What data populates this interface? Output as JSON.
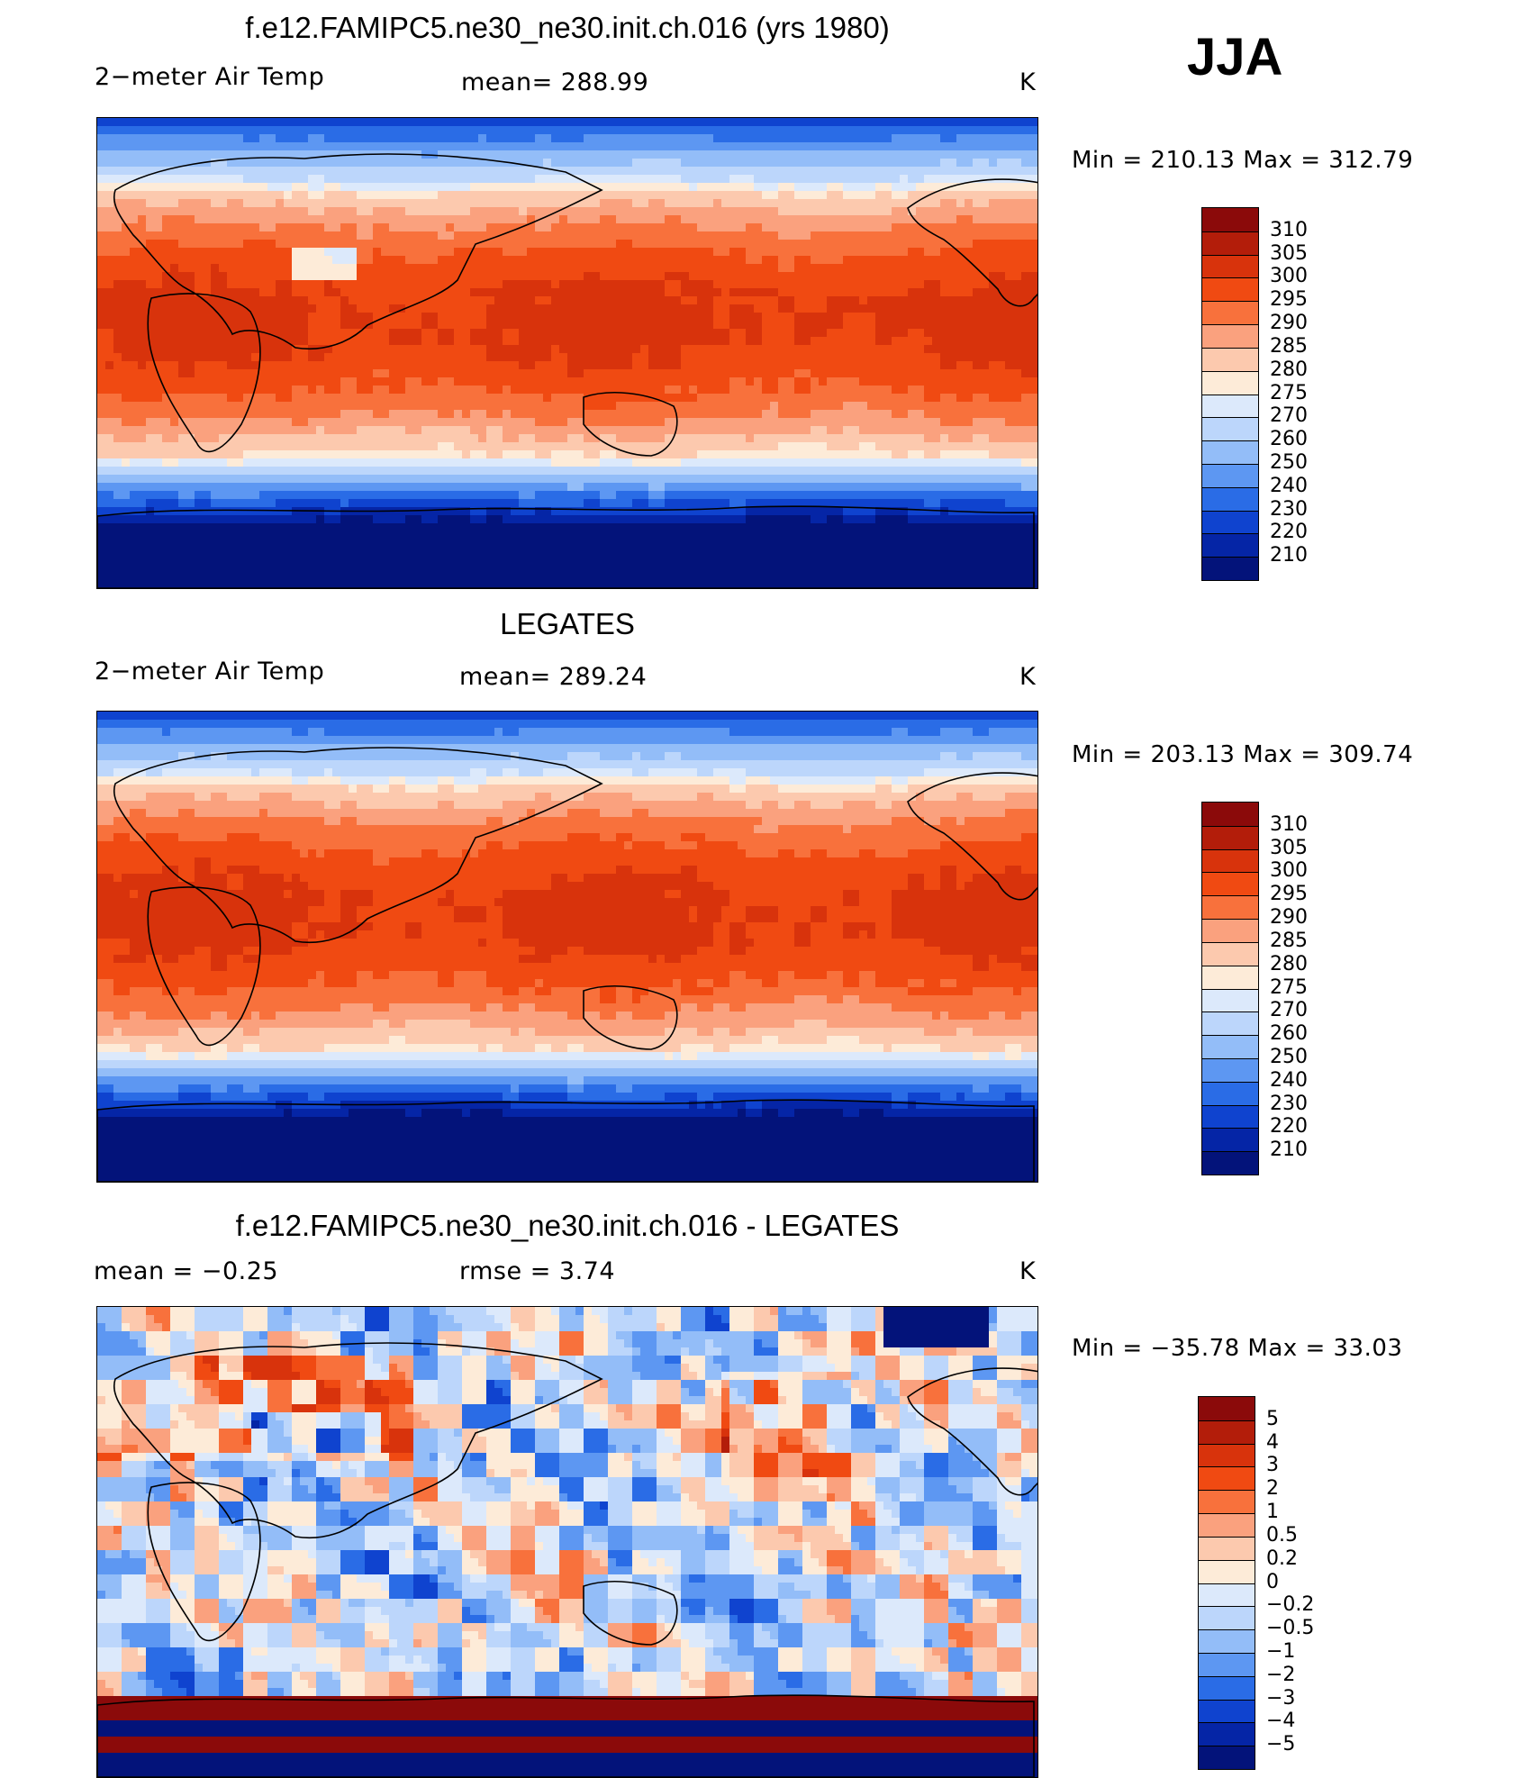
{
  "season": "JJA",
  "panels": [
    {
      "title": "f.e12.FAMIPC5.ne30_ne30.init.ch.016 (yrs 1980)",
      "left_label": "2−meter Air Temp",
      "center_label": "mean=  288.99",
      "units": "K",
      "min_max": "Min  =  210.13  Max  =  312.79",
      "style": "model"
    },
    {
      "title": "LEGATES",
      "left_label": "2−meter Air Temp",
      "center_label": "mean=  289.24",
      "units": "K",
      "min_max": "Min  =  203.13  Max  =  309.74",
      "style": "obs"
    },
    {
      "title": "f.e12.FAMIPC5.ne30_ne30.init.ch.016 - LEGATES",
      "left_label": "mean =    −0.25",
      "center_label": "rmse =     3.74",
      "units": "K",
      "min_max": "Min  =  −35.78  Max  =    33.03",
      "style": "diff"
    }
  ],
  "chart_data": [
    {
      "type": "heatmap",
      "title": "f.e12.FAMIPC5.ne30_ne30.init.ch.016 (yrs 1980)",
      "variable": "2-meter Air Temp",
      "units": "K",
      "mean": 288.99,
      "min": 210.13,
      "max": 312.79,
      "colorbar_levels": [
        "310",
        "305",
        "300",
        "295",
        "290",
        "285",
        "280",
        "275",
        "270",
        "260",
        "250",
        "240",
        "230",
        "220",
        "210"
      ],
      "colorbar_colors": [
        "#8b0a0a",
        "#b31d0a",
        "#d8330c",
        "#f04a12",
        "#f8713c",
        "#faa17e",
        "#fcc9ae",
        "#fdebd8",
        "#dce9fb",
        "#bcd6fb",
        "#93bdf8",
        "#5d97f2",
        "#2a6ce6",
        "#0f43cf",
        "#0525a6",
        "#03137a"
      ]
    },
    {
      "type": "heatmap",
      "title": "LEGATES",
      "variable": "2-meter Air Temp",
      "units": "K",
      "mean": 289.24,
      "min": 203.13,
      "max": 309.74,
      "colorbar_levels": [
        "310",
        "305",
        "300",
        "295",
        "290",
        "285",
        "280",
        "275",
        "270",
        "260",
        "250",
        "240",
        "230",
        "220",
        "210"
      ],
      "colorbar_colors": [
        "#8b0a0a",
        "#b31d0a",
        "#d8330c",
        "#f04a12",
        "#f8713c",
        "#faa17e",
        "#fcc9ae",
        "#fdebd8",
        "#dce9fb",
        "#bcd6fb",
        "#93bdf8",
        "#5d97f2",
        "#2a6ce6",
        "#0f43cf",
        "#0525a6",
        "#03137a"
      ]
    },
    {
      "type": "heatmap",
      "title": "f.e12.FAMIPC5.ne30_ne30.init.ch.016 - LEGATES",
      "variable": "difference",
      "units": "K",
      "mean": -0.25,
      "rmse": 3.74,
      "min": -35.78,
      "max": 33.03,
      "colorbar_levels": [
        "5",
        "4",
        "3",
        "2",
        "1",
        "0.5",
        "0.2",
        "0",
        "−0.2",
        "−0.5",
        "−1",
        "−2",
        "−3",
        "−4",
        "−5"
      ],
      "colorbar_colors": [
        "#8b0a0a",
        "#b31d0a",
        "#d8330c",
        "#f04a12",
        "#f8713c",
        "#faa17e",
        "#fcc9ae",
        "#fdebd8",
        "#dce9fb",
        "#bcd6fb",
        "#93bdf8",
        "#5d97f2",
        "#2a6ce6",
        "#0f43cf",
        "#0525a6",
        "#03137a"
      ]
    }
  ]
}
